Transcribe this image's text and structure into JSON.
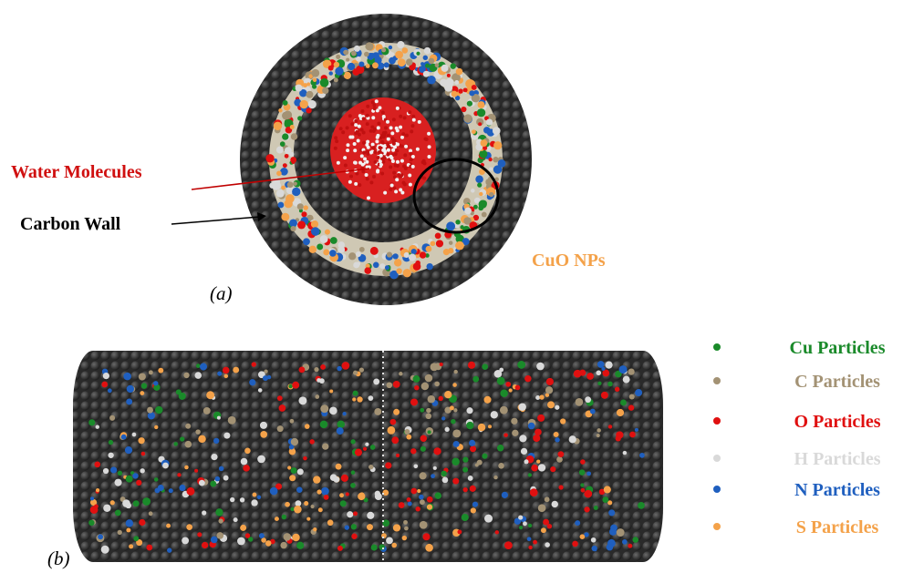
{
  "panel_a": {
    "tag": "(a)",
    "labels": {
      "water": "Water Molecules",
      "wall": "Carbon Wall",
      "nps": "CuO NPs"
    }
  },
  "panel_b": {
    "tag": "(b)"
  },
  "legend": [
    {
      "label": "Cu Particles",
      "color": "#1a8a2a"
    },
    {
      "label": "C Particles",
      "color": "#a39274"
    },
    {
      "label": "O Particles",
      "color": "#e01010"
    },
    {
      "label": "H Particles",
      "color": "#d9d9d9"
    },
    {
      "label": "N Particles",
      "color": "#1f5fbf"
    },
    {
      "label": "S Particles",
      "color": "#f4a24a"
    }
  ]
}
